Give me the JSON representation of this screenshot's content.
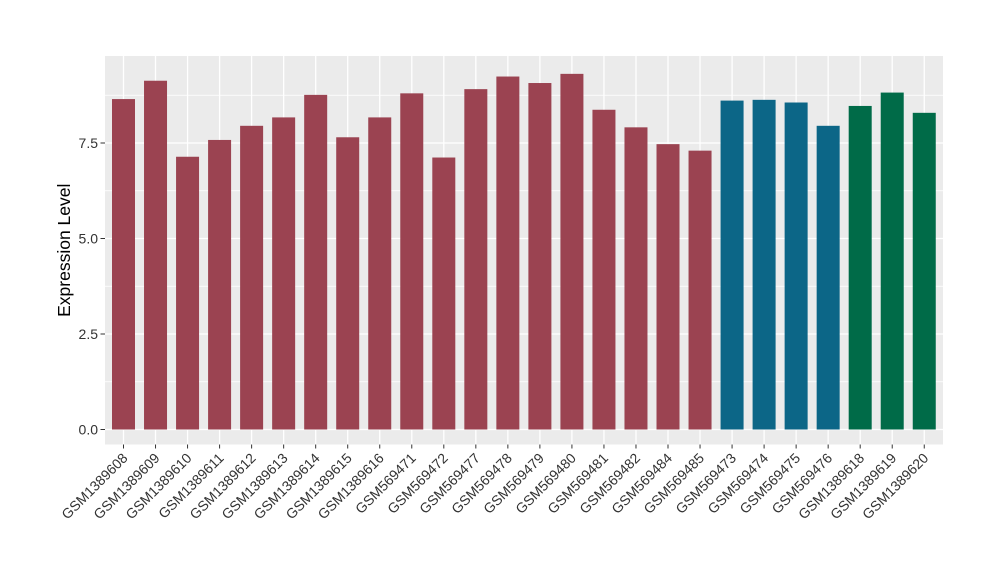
{
  "chart_data": {
    "type": "bar",
    "title": "",
    "xlabel": "",
    "ylabel": "Expression Level",
    "ylim": [
      0,
      9.78
    ],
    "yticks": [
      0,
      2.5,
      5,
      7.5
    ],
    "ytick_labels": [
      "0.0",
      "2.5",
      "5.0",
      "7.5"
    ],
    "yticks_minor": [
      1.25,
      3.75,
      6.25,
      8.75
    ],
    "grid": true,
    "legend_position": "none",
    "categories": [
      "GSM1389608",
      "GSM1389609",
      "GSM1389610",
      "GSM1389611",
      "GSM1389612",
      "GSM1389613",
      "GSM1389614",
      "GSM1389615",
      "GSM1389616",
      "GSM569471",
      "GSM569472",
      "GSM569477",
      "GSM569478",
      "GSM569479",
      "GSM569480",
      "GSM569481",
      "GSM569482",
      "GSM569484",
      "GSM569485",
      "GSM569473",
      "GSM569474",
      "GSM569475",
      "GSM569476",
      "GSM1389618",
      "GSM1389619",
      "GSM1389620"
    ],
    "values": [
      8.65,
      9.13,
      7.14,
      7.58,
      7.95,
      8.17,
      8.76,
      7.65,
      8.17,
      8.8,
      7.12,
      8.91,
      9.24,
      9.07,
      9.31,
      8.37,
      7.91,
      7.47,
      7.3,
      8.61,
      8.63,
      8.56,
      7.95,
      8.47,
      8.82,
      8.29
    ],
    "bar_colors": [
      "#9B4351",
      "#9B4351",
      "#9B4351",
      "#9B4351",
      "#9B4351",
      "#9B4351",
      "#9B4351",
      "#9B4351",
      "#9B4351",
      "#9B4351",
      "#9B4351",
      "#9B4351",
      "#9B4351",
      "#9B4351",
      "#9B4351",
      "#9B4351",
      "#9B4351",
      "#9B4351",
      "#9B4351",
      "#0C6687",
      "#0C6687",
      "#0C6687",
      "#0C6687",
      "#006B48",
      "#006B48",
      "#006B48"
    ],
    "palette": {
      "maroon": "#9B4351",
      "teal": "#0C6687",
      "green": "#006B48"
    },
    "style": {
      "background": "#FFFFFF",
      "panel_bg": "#EBEBEB",
      "grid_color": "#FFFFFF",
      "axis_text_color": "#333333",
      "axis_title_color": "#000000",
      "tick_color": "#333333"
    }
  }
}
